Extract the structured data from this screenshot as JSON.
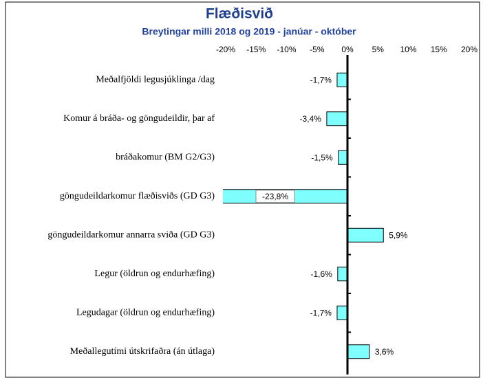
{
  "chart_data": {
    "type": "bar",
    "orientation": "horizontal",
    "title": "Flæðisvið",
    "subtitle": "Breytingar milli 2018 og 2019 - janúar - október",
    "categories": [
      "Meðalfjöldi legusjúklinga /dag",
      "Komur á bráða- og göngudeildir, þar af",
      "bráðakomur (BM G2/G3)",
      "göngudeildarkomur flæðisviðs (GD G3)",
      "göngudeildarkomur annarra sviða (GD G3)",
      "Legur (öldrun og endurhæfing)",
      "Legudagar (öldrun og endurhæfing)",
      "Meðallegutími útskrifaðra (án útlaga)"
    ],
    "values": [
      -1.7,
      -3.4,
      -1.5,
      -23.8,
      5.9,
      -1.6,
      -1.7,
      3.6
    ],
    "value_labels": [
      "-1,7%",
      "-3,4%",
      "-1,5%",
      "-23,8%",
      "5,9%",
      "-1,6%",
      "-1,7%",
      "3,6%"
    ],
    "color": "#80ffff",
    "xlim": [
      -20,
      20
    ],
    "xticks": [
      {
        "value": -20,
        "label": "-20%"
      },
      {
        "value": -15,
        "label": "-15%"
      },
      {
        "value": -10,
        "label": "-10%"
      },
      {
        "value": -5,
        "label": "-5%"
      },
      {
        "value": 0,
        "label": "0%"
      },
      {
        "value": 5,
        "label": "5%"
      },
      {
        "value": 10,
        "label": "10%"
      },
      {
        "value": 15,
        "label": "15%"
      },
      {
        "value": 20,
        "label": "20%"
      }
    ],
    "grid": false
  }
}
